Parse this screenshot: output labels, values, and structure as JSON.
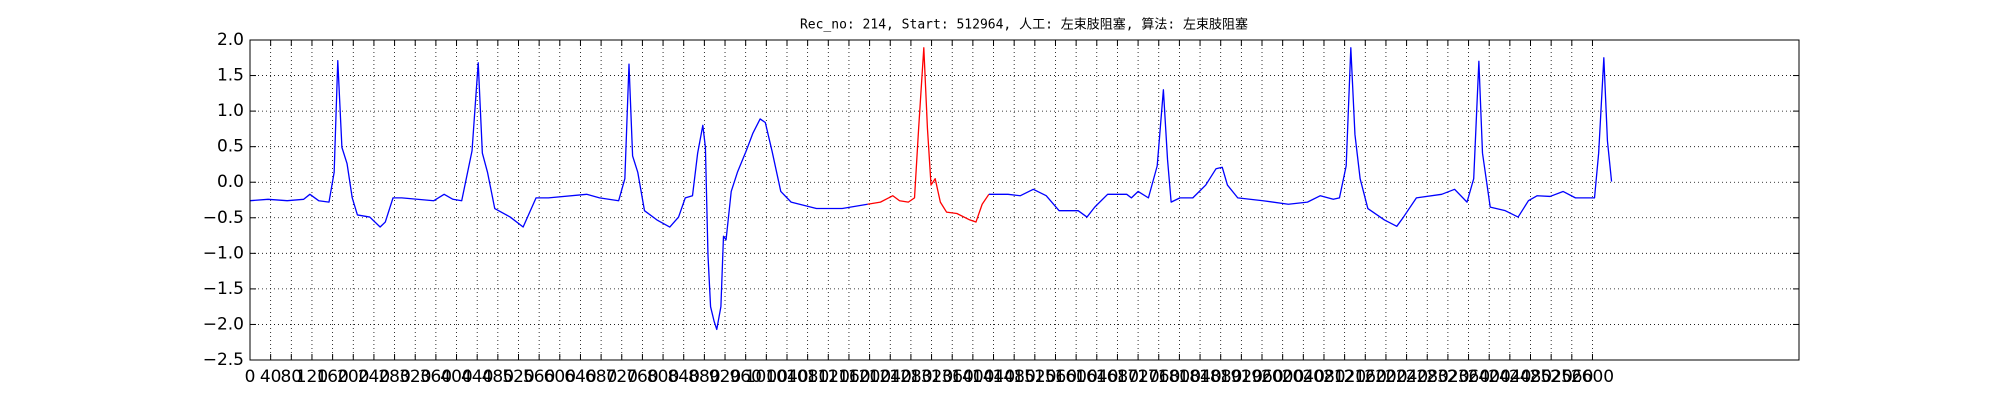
{
  "chart_data": {
    "type": "line",
    "title": "Rec_no: 214, Start: 512964, 人工: 左束肢阻塞, 算法: 左束肢阻塞",
    "xlim": [
      0,
      3000
    ],
    "ylim": [
      -2.5,
      2
    ],
    "xticks": [
      0,
      40,
      80,
      120,
      160,
      200,
      240,
      280,
      320,
      360,
      400,
      440,
      480,
      520,
      560,
      600,
      640,
      680,
      720,
      760,
      800,
      840,
      880,
      920,
      960,
      1000,
      1040,
      1080,
      1120,
      1160,
      1200,
      1240,
      1280,
      1320,
      1360,
      1400,
      1440,
      1480,
      1520,
      1560,
      1600,
      1640,
      1680,
      1720,
      1760,
      1800,
      1840,
      1880,
      1920,
      1960,
      2000,
      2040,
      2080,
      2120,
      2160,
      2200,
      2240,
      2280,
      2320,
      2360,
      2400,
      2440,
      2480,
      2520,
      2560,
      2600
    ],
    "yticks": [
      {
        "value": -2.5,
        "label": "−2.5"
      },
      {
        "value": -2,
        "label": "−2.0"
      },
      {
        "value": -1.5,
        "label": "−1.5"
      },
      {
        "value": -1,
        "label": "−1.0"
      },
      {
        "value": -0.5,
        "label": "−0.5"
      },
      {
        "value": 0,
        "label": "0.0"
      },
      0.5,
      {
        "value": 1,
        "label": "1.0"
      },
      1.5,
      {
        "value": 2,
        "label": "2.0"
      }
    ],
    "grid": true,
    "series": [
      {
        "color": "#0000ff",
        "x": [
          0,
          35,
          72,
          104,
          116,
          133,
          153,
          163,
          170,
          178,
          188,
          198,
          208,
          232,
          252,
          262,
          277,
          294,
          356,
          376,
          393,
          410,
          430,
          442,
          450,
          460,
          474,
          504,
          529,
          554,
          578,
          652,
          677,
          714,
          726,
          734,
          741,
          751,
          764,
          788,
          813,
          830,
          843,
          857,
          867,
          877,
          882,
          887,
          892,
          899,
          904,
          912,
          917,
          922,
          932,
          944,
          961,
          974,
          988,
          998,
          1011,
          1028,
          1048,
          1097,
          1147,
          1196
        ],
        "values": [
          -0.26,
          -0.24,
          -0.26,
          -0.24,
          -0.17,
          -0.26,
          -0.28,
          0.14,
          1.71,
          0.49,
          0.26,
          -0.22,
          -0.46,
          -0.49,
          -0.63,
          -0.56,
          -0.22,
          -0.22,
          -0.26,
          -0.17,
          -0.24,
          -0.26,
          0.44,
          1.68,
          0.41,
          0.14,
          -0.37,
          -0.49,
          -0.63,
          -0.22,
          -0.22,
          -0.17,
          -0.22,
          -0.26,
          0.05,
          1.66,
          0.37,
          0.14,
          -0.4,
          -0.53,
          -0.63,
          -0.49,
          -0.22,
          -0.19,
          0.41,
          0.8,
          0.49,
          -1.03,
          -1.75,
          -1.96,
          -2.07,
          -1.75,
          -0.76,
          -0.81,
          -0.13,
          0.14,
          0.44,
          0.69,
          0.89,
          0.84,
          0.44,
          -0.13,
          -0.28,
          -0.37,
          -0.37,
          -0.31
        ]
      },
      {
        "color": "#ff0000",
        "x": [
          1196,
          1221,
          1245,
          1258,
          1275,
          1287,
          1295,
          1305,
          1312,
          1319,
          1327,
          1337,
          1349,
          1369,
          1394,
          1406,
          1418,
          1431
        ],
        "values": [
          -0.31,
          -0.28,
          -0.19,
          -0.26,
          -0.28,
          -0.22,
          0.76,
          1.89,
          0.76,
          -0.04,
          0.05,
          -0.28,
          -0.42,
          -0.44,
          -0.53,
          -0.56,
          -0.31,
          -0.17
        ]
      },
      {
        "color": "#0000ff",
        "x": [
          1431,
          1468,
          1492,
          1517,
          1542,
          1567,
          1604,
          1621,
          1636,
          1661,
          1698,
          1707,
          1720,
          1740,
          1757,
          1769,
          1777,
          1784,
          1801,
          1826,
          1851,
          1871,
          1883,
          1893,
          1913,
          1962,
          2011,
          2048,
          2073,
          2098,
          2110,
          2123,
          2132,
          2140,
          2150,
          2165,
          2197,
          2221,
          2234,
          2259,
          2308,
          2333,
          2357,
          2370,
          2380,
          2387,
          2402,
          2431,
          2456,
          2476,
          2493,
          2518,
          2543,
          2567,
          2604,
          2612,
          2622,
          2629,
          2637
        ],
        "values": [
          -0.17,
          -0.17,
          -0.19,
          -0.1,
          -0.19,
          -0.4,
          -0.4,
          -0.49,
          -0.35,
          -0.17,
          -0.17,
          -0.22,
          -0.13,
          -0.22,
          0.23,
          1.3,
          0.32,
          -0.28,
          -0.22,
          -0.22,
          -0.04,
          0.19,
          0.21,
          -0.04,
          -0.22,
          -0.26,
          -0.31,
          -0.28,
          -0.19,
          -0.24,
          -0.22,
          0.23,
          1.89,
          0.67,
          0.05,
          -0.37,
          -0.53,
          -0.62,
          -0.49,
          -0.22,
          -0.17,
          -0.1,
          -0.28,
          0.05,
          1.7,
          0.41,
          -0.35,
          -0.4,
          -0.49,
          -0.26,
          -0.19,
          -0.2,
          -0.13,
          -0.22,
          -0.22,
          0.41,
          1.75,
          0.58,
          0.01
        ]
      }
    ]
  }
}
